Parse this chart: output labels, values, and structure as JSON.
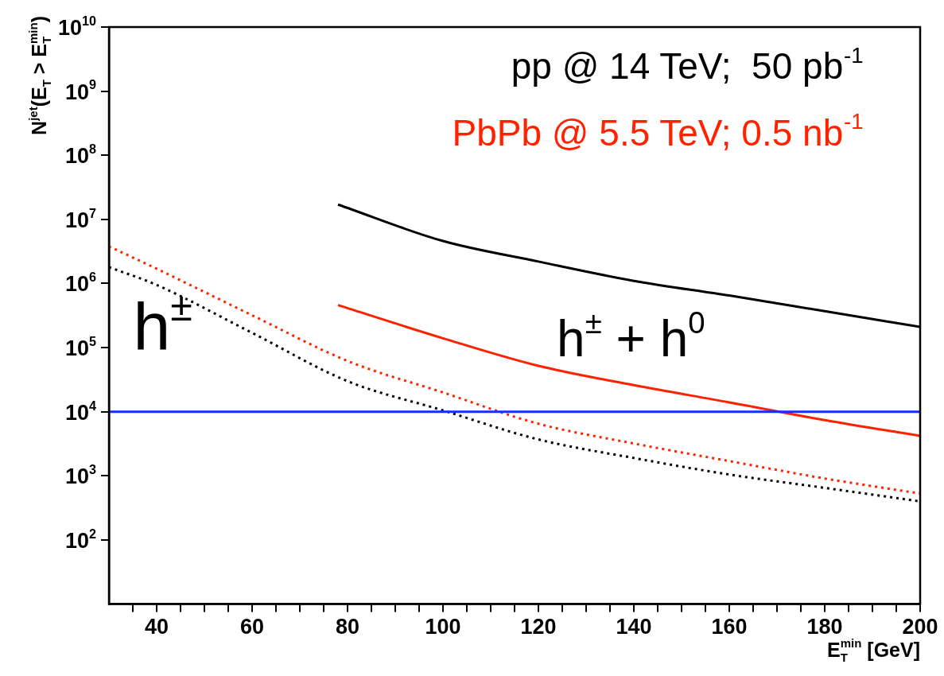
{
  "chart_data": {
    "type": "line",
    "xlabel": "E$_{T}$$^{min}$ [GeV]",
    "ylabel": "N$^{jet}$(E$_{T}$ > E$_{T}$$^{min}$)",
    "log": "y",
    "marker": "none",
    "xlim": [
      30,
      200
    ],
    "ylim": [
      10,
      10000000000
    ],
    "xticks": [
      {
        "value": 35,
        "label": null
      },
      40,
      {
        "value": 45,
        "label": null
      },
      {
        "value": 50,
        "label": null
      },
      {
        "value": 55,
        "label": null
      },
      60,
      {
        "value": 65,
        "label": null
      },
      {
        "value": 70,
        "label": null
      },
      {
        "value": 75,
        "label": null
      },
      80,
      {
        "value": 85,
        "label": null
      },
      {
        "value": 90,
        "label": null
      },
      {
        "value": 95,
        "label": null
      },
      100,
      {
        "value": 105,
        "label": null
      },
      {
        "value": 110,
        "label": null
      },
      {
        "value": 115,
        "label": null
      },
      120,
      {
        "value": 125,
        "label": null
      },
      {
        "value": 130,
        "label": null
      },
      {
        "value": 135,
        "label": null
      },
      140,
      {
        "value": 145,
        "label": null
      },
      {
        "value": 150,
        "label": null
      },
      {
        "value": 155,
        "label": null
      },
      160,
      {
        "value": 165,
        "label": null
      },
      {
        "value": 170,
        "label": null
      },
      {
        "value": 175,
        "label": null
      },
      180,
      {
        "value": 185,
        "label": null
      },
      {
        "value": 190,
        "label": null
      },
      {
        "value": 195,
        "label": null
      },
      200
    ],
    "yticks": [
      {
        "value": 100,
        "label": "10$^{2}$"
      },
      {
        "value": 1000,
        "label": "10$^{3}$"
      },
      {
        "value": 10000,
        "label": "10$^{4}$"
      },
      {
        "value": 100000,
        "label": "10$^{5}$"
      },
      {
        "value": 1000000,
        "label": "10$^{6}$"
      },
      {
        "value": 10000000,
        "label": "10$^{7}$"
      },
      {
        "value": 100000000,
        "label": "10$^{8}$"
      },
      {
        "value": 1000000000,
        "label": "10$^{9}$"
      },
      {
        "value": 10000000000,
        "label": "10$^{10}$"
      }
    ],
    "series": [
      {
        "name": "pp @ 14 TeV;  50 pb$^{-1}$",
        "color": "#000000",
        "line_style": "solid",
        "x": [
          78,
          100,
          120,
          140,
          160,
          180,
          200
        ],
        "values": [
          17000000,
          4600000,
          2200000,
          1100000,
          650000,
          370000,
          210000
        ]
      },
      {
        "name": "PbPb @ 5.5 TeV; 0.5 nb$^{-1}$",
        "color": "#ff2200",
        "line_style": "solid",
        "x": [
          78,
          100,
          120,
          140,
          160,
          180,
          200
        ],
        "values": [
          460000,
          140000,
          52000,
          26000,
          14000,
          7400,
          4200
        ]
      },
      {
        "color": "#ff2200",
        "line_style": "dotted",
        "x": [
          30,
          40,
          60,
          80,
          100,
          120,
          140,
          160,
          180,
          200
        ],
        "values": [
          3800000,
          1700000,
          320000,
          62000,
          20000,
          6500,
          3200,
          1700,
          910,
          530
        ]
      },
      {
        "color": "#000000",
        "line_style": "dotted",
        "x": [
          30,
          40,
          60,
          80,
          100,
          120,
          140,
          160,
          180,
          200
        ],
        "values": [
          1800000,
          950000,
          170000,
          30000,
          10500,
          3700,
          1900,
          1050,
          650,
          400
        ]
      }
    ],
    "ref_lines": [
      {
        "axis": "y",
        "value": 10000,
        "color": "#1030ff"
      }
    ],
    "annotations": [
      "h$^{±}$",
      "h$^{±}$ + h$^{0}$"
    ]
  }
}
